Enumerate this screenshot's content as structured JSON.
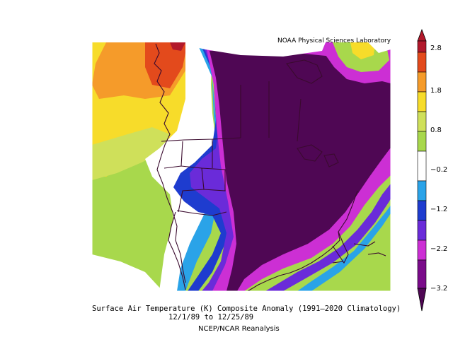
{
  "attribution": "NOAA Physical Sciences Laboratory",
  "colors": {
    "dark_red": "#b2182b",
    "red_orange": "#e34a1c",
    "orange": "#f59b2a",
    "yellow": "#f7dc2a",
    "yellow_green": "#cfe05a",
    "green": "#a8d84c",
    "white": "#ffffff",
    "light_blue": "#2aa3e8",
    "blue": "#1e3ccf",
    "blue_violet": "#6a2bd9",
    "magenta": "#cc2fd4",
    "dark_purple": "#4f0754"
  },
  "colorbar": {
    "labels": [
      "2.8",
      "1.8",
      "0.8",
      "−0.2",
      "−1.2",
      "−2.2",
      "−3.2"
    ]
  },
  "caption": {
    "line1": "Surface Air Temperature (K) Composite Anomaly (1991–2020 Climatology)",
    "line2": "12/1/89  to 12/25/89",
    "line3": "NCEP/NCAR Reanalysis"
  }
}
